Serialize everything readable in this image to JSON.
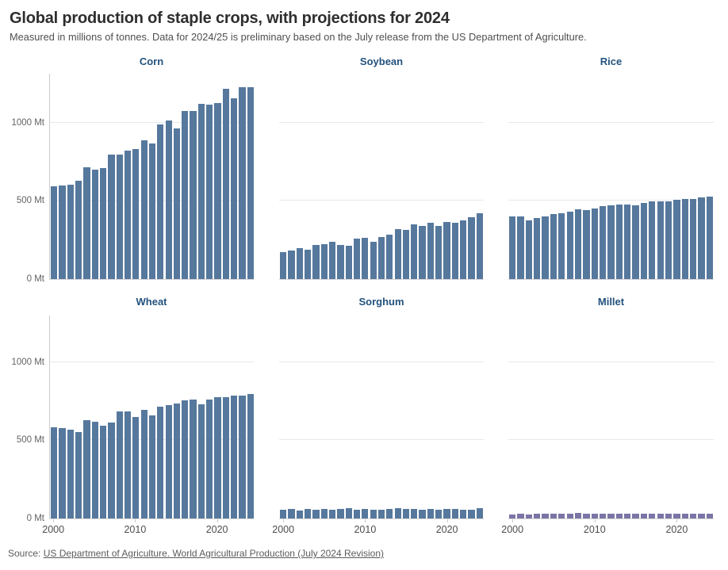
{
  "header": {
    "title": "Global production of staple crops, with projections for 2024",
    "subtitle": "Measured in millions of tonnes. Data for 2024/25 is preliminary based on the July release from the US Department of Agriculture."
  },
  "source": {
    "prefix": "Source: ",
    "link_text": "US Department of Agriculture. World Agricultural Production (July 2024 Revision)"
  },
  "axis": {
    "y_tick_labels": [
      "0 Mt",
      "500 Mt",
      "1000 Mt"
    ],
    "y_tick_values": [
      0,
      500,
      1000
    ],
    "x_tick_labels": [
      "2000",
      "2010",
      "2020"
    ],
    "x_tick_indices": [
      0,
      10,
      20
    ],
    "unit": "Mt",
    "y_max": 1315,
    "grid": "horizontal-only"
  },
  "colors": {
    "bar_default": "#56789d",
    "bar_millet": "#7b75a6",
    "facet_title": "#24527e",
    "gridline": "#e8e8e8"
  },
  "chart_data": [
    {
      "type": "bar",
      "title": "Corn",
      "x": [
        2000,
        2001,
        2002,
        2003,
        2004,
        2005,
        2006,
        2007,
        2008,
        2009,
        2010,
        2011,
        2012,
        2013,
        2014,
        2015,
        2016,
        2017,
        2018,
        2019,
        2020,
        2021,
        2022,
        2023,
        2024
      ],
      "values": [
        592,
        600,
        603,
        627,
        715,
        699,
        713,
        795,
        799,
        820,
        835,
        890,
        869,
        991,
        1014,
        962,
        1076,
        1078,
        1124,
        1117,
        1129,
        1217,
        1156,
        1228,
        1226
      ],
      "ylabel": "Mt",
      "ylim": [
        0,
        1315
      ],
      "color": "#56789d"
    },
    {
      "type": "bar",
      "title": "Soybean",
      "x": [
        2000,
        2001,
        2002,
        2003,
        2004,
        2005,
        2006,
        2007,
        2008,
        2009,
        2010,
        2011,
        2012,
        2013,
        2014,
        2015,
        2016,
        2017,
        2018,
        2019,
        2020,
        2021,
        2022,
        2023,
        2024
      ],
      "values": [
        175,
        185,
        197,
        186,
        216,
        221,
        237,
        219,
        212,
        260,
        264,
        240,
        268,
        283,
        320,
        313,
        348,
        342,
        361,
        339,
        368,
        360,
        378,
        395,
        422
      ],
      "ylabel": "Mt",
      "ylim": [
        0,
        1315
      ],
      "color": "#56789d"
    },
    {
      "type": "bar",
      "title": "Rice",
      "x": [
        2000,
        2001,
        2002,
        2003,
        2004,
        2005,
        2006,
        2007,
        2008,
        2009,
        2010,
        2011,
        2012,
        2013,
        2014,
        2015,
        2016,
        2017,
        2018,
        2019,
        2020,
        2021,
        2022,
        2023,
        2024
      ],
      "values": [
        399,
        400,
        378,
        392,
        401,
        418,
        420,
        433,
        449,
        441,
        450,
        467,
        473,
        479,
        478,
        472,
        487,
        495,
        499,
        497,
        509,
        515,
        514,
        522,
        527
      ],
      "ylabel": "Mt",
      "ylim": [
        0,
        1315
      ],
      "color": "#56789d"
    },
    {
      "type": "bar",
      "title": "Wheat",
      "x": [
        2000,
        2001,
        2002,
        2003,
        2004,
        2005,
        2006,
        2007,
        2008,
        2009,
        2010,
        2011,
        2012,
        2013,
        2014,
        2015,
        2016,
        2017,
        2018,
        2019,
        2020,
        2021,
        2022,
        2023,
        2024
      ],
      "values": [
        583,
        581,
        569,
        555,
        627,
        619,
        596,
        612,
        683,
        687,
        651,
        697,
        658,
        715,
        728,
        737,
        756,
        763,
        731,
        762,
        776,
        779,
        789,
        787,
        798
      ],
      "ylabel": "Mt",
      "ylim": [
        0,
        1315
      ],
      "color": "#56789d"
    },
    {
      "type": "bar",
      "title": "Sorghum",
      "x": [
        2000,
        2001,
        2002,
        2003,
        2004,
        2005,
        2006,
        2007,
        2008,
        2009,
        2010,
        2011,
        2012,
        2013,
        2014,
        2015,
        2016,
        2017,
        2018,
        2019,
        2020,
        2021,
        2022,
        2023,
        2024
      ],
      "values": [
        56,
        60,
        53,
        59,
        58,
        59,
        57,
        63,
        66,
        56,
        60,
        54,
        57,
        61,
        66,
        63,
        63,
        58,
        59,
        58,
        62,
        61,
        57,
        58,
        64
      ],
      "ylabel": "Mt",
      "ylim": [
        0,
        1315
      ],
      "color": "#56789d"
    },
    {
      "type": "bar",
      "title": "Millet",
      "x": [
        2000,
        2001,
        2002,
        2003,
        2004,
        2005,
        2006,
        2007,
        2008,
        2009,
        2010,
        2011,
        2012,
        2013,
        2014,
        2015,
        2016,
        2017,
        2018,
        2019,
        2020,
        2021,
        2022,
        2023,
        2024
      ],
      "values": [
        27,
        29,
        26,
        31,
        29,
        31,
        32,
        32,
        34,
        28,
        31,
        28,
        29,
        29,
        28,
        28,
        29,
        28,
        28,
        28,
        30,
        30,
        28,
        29,
        31
      ],
      "ylabel": "Mt",
      "ylim": [
        0,
        1315
      ],
      "color": "#7b75a6"
    }
  ]
}
